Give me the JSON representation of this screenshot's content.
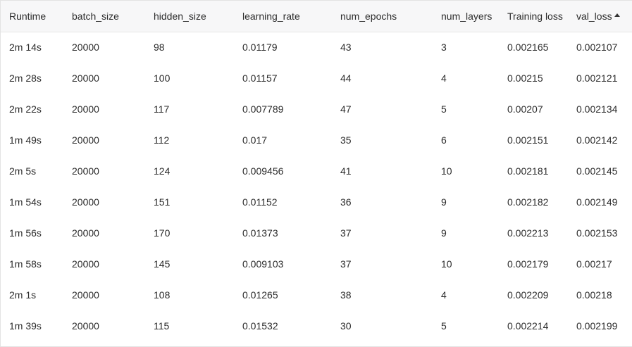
{
  "table": {
    "columns": [
      {
        "label": "Runtime"
      },
      {
        "label": "batch_size"
      },
      {
        "label": "hidden_size"
      },
      {
        "label": "learning_rate"
      },
      {
        "label": "num_epochs"
      },
      {
        "label": "num_layers"
      },
      {
        "label": "Training loss"
      },
      {
        "label": "val_loss",
        "sort": "ascending",
        "sort_icon": "sort-ascending-icon"
      }
    ],
    "rows": [
      [
        "2m 14s",
        "20000",
        "98",
        "0.01179",
        "43",
        "3",
        "0.002165",
        "0.002107"
      ],
      [
        "2m 28s",
        "20000",
        "100",
        "0.01157",
        "44",
        "4",
        "0.00215",
        "0.002121"
      ],
      [
        "2m 22s",
        "20000",
        "117",
        "0.007789",
        "47",
        "5",
        "0.00207",
        "0.002134"
      ],
      [
        "1m 49s",
        "20000",
        "112",
        "0.017",
        "35",
        "6",
        "0.002151",
        "0.002142"
      ],
      [
        "2m 5s",
        "20000",
        "124",
        "0.009456",
        "41",
        "10",
        "0.002181",
        "0.002145"
      ],
      [
        "1m 54s",
        "20000",
        "151",
        "0.01152",
        "36",
        "9",
        "0.002182",
        "0.002149"
      ],
      [
        "1m 56s",
        "20000",
        "170",
        "0.01373",
        "37",
        "9",
        "0.002213",
        "0.002153"
      ],
      [
        "1m 58s",
        "20000",
        "145",
        "0.009103",
        "37",
        "10",
        "0.002179",
        "0.00217"
      ],
      [
        "2m 1s",
        "20000",
        "108",
        "0.01265",
        "38",
        "4",
        "0.002209",
        "0.00218"
      ],
      [
        "1m 39s",
        "20000",
        "115",
        "0.01532",
        "30",
        "5",
        "0.002214",
        "0.002199"
      ]
    ]
  }
}
